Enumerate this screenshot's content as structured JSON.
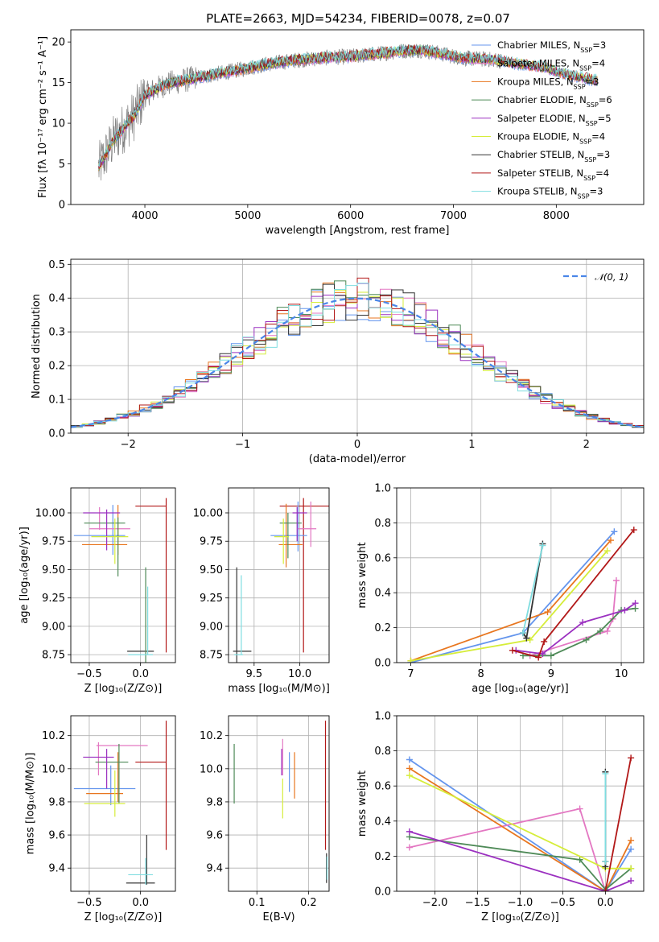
{
  "page_title": "PLATE=2663, MJD=54234, FIBERID=0078, z=0.07",
  "models": [
    {
      "name": "Chabrier MILES",
      "nssp": "3",
      "color": "#6495ed"
    },
    {
      "name": "Salpeter MILES",
      "nssp": "4",
      "color": "#e377c2"
    },
    {
      "name": "Kroupa MILES",
      "nssp": "3",
      "color": "#e8761f"
    },
    {
      "name": "Chabrier ELODIE",
      "nssp": "6",
      "color": "#4e8a57"
    },
    {
      "name": "Salpeter ELODIE",
      "nssp": "5",
      "color": "#9b30c0"
    },
    {
      "name": "Kroupa ELODIE",
      "nssp": "4",
      "color": "#d6ed3a"
    },
    {
      "name": "Chabrier STELIB",
      "nssp": "3",
      "color": "#333333"
    },
    {
      "name": "Salpeter STELIB",
      "nssp": "4",
      "color": "#b21818"
    },
    {
      "name": "Kroupa STELIB",
      "nssp": "3",
      "color": "#7fdde0"
    }
  ],
  "chart_data": [
    {
      "type": "line",
      "id": "spectrum",
      "xlabel": "wavelength [Angstrom, rest frame]",
      "ylabel": "Flux [fλ 10⁻¹⁷ erg cm⁻² s⁻¹ A⁻¹]",
      "xlim": [
        3280,
        8850
      ],
      "ylim": [
        0,
        21.5
      ],
      "xticks": [
        4000,
        5000,
        6000,
        7000,
        8000
      ],
      "yticks": [
        0,
        5,
        10,
        15,
        20
      ],
      "data_color": "#808080",
      "continuum": {
        "x": [
          3550,
          3700,
          3900,
          4000,
          4200,
          4500,
          4800,
          5000,
          5200,
          5500,
          5800,
          6000,
          6300,
          6500,
          6700,
          6900,
          7100,
          7400,
          7700,
          7900,
          8100,
          8400
        ],
        "y": [
          4.5,
          8.0,
          11.0,
          13.5,
          14.8,
          15.6,
          16.3,
          16.8,
          17.3,
          17.8,
          18.1,
          18.2,
          18.6,
          18.9,
          19.0,
          18.5,
          18.0,
          17.8,
          17.2,
          16.8,
          16.0,
          15.2
        ]
      },
      "legend": "right",
      "grid": false
    },
    {
      "type": "histogram",
      "id": "residuals",
      "xlabel": "(data-model)/error",
      "ylabel": "Normed distribution",
      "xlim": [
        -2.5,
        2.5
      ],
      "ylim": [
        0,
        0.515
      ],
      "xticks": [
        -2,
        -1,
        0,
        1,
        2
      ],
      "yticks": [
        0.0,
        0.1,
        0.2,
        0.3,
        0.4,
        0.5
      ],
      "bin_width": 0.1,
      "reference": {
        "label": "𝒩(0, 1)",
        "color": "#4a86e8"
      },
      "legend": "top-right",
      "grid": true
    },
    {
      "type": "scatter",
      "id": "age-vs-Z",
      "xlabel": "Z [log₁₀(Z/Z⊙)]",
      "ylabel": "age  [log₁₀(age/yr)]",
      "xlim": [
        -0.68,
        0.34
      ],
      "ylim": [
        8.68,
        10.22
      ],
      "xticks": [
        -0.5,
        0.0
      ],
      "yticks": [
        8.75,
        9.0,
        9.25,
        9.5,
        9.75,
        10.0
      ],
      "errorbars": [
        {
          "model": 6,
          "x": 0.0,
          "xerr": 0.13,
          "y": 8.78,
          "yerr": 0.0
        },
        {
          "model": 3,
          "x": 0.05,
          "xerr": 0.0,
          "y": 8.9,
          "yerr": 0.62
        },
        {
          "model": 8,
          "x": 0.07,
          "xerr": 0.0,
          "y": 9.05,
          "yerr": 0.3
        },
        {
          "model": 8,
          "x": 0.0,
          "xerr": 0.12,
          "y": 8.75,
          "yerr": 0.0
        },
        {
          "model": 7,
          "x": 0.25,
          "xerr": 0.0,
          "y": 9.45,
          "yerr": 0.68
        },
        {
          "model": 7,
          "x": 0.1,
          "xerr": 0.15,
          "y": 10.06,
          "yerr": 0.0
        },
        {
          "model": 0,
          "x": -0.4,
          "xerr": 0.25,
          "y": 9.8,
          "yerr": 0.0
        },
        {
          "model": 0,
          "x": -0.27,
          "xerr": 0.0,
          "y": 9.85,
          "yerr": 0.22
        },
        {
          "model": 1,
          "x": -0.3,
          "xerr": 0.2,
          "y": 9.86,
          "yerr": 0.0
        },
        {
          "model": 1,
          "x": -0.4,
          "xerr": 0.0,
          "y": 9.95,
          "yerr": 0.1
        },
        {
          "model": 2,
          "x": -0.35,
          "xerr": 0.22,
          "y": 9.72,
          "yerr": 0.0
        },
        {
          "model": 2,
          "x": -0.22,
          "xerr": 0.0,
          "y": 9.85,
          "yerr": 0.22
        },
        {
          "model": 3,
          "x": -0.35,
          "xerr": 0.2,
          "y": 9.91,
          "yerr": 0.0
        },
        {
          "model": 3,
          "x": -0.22,
          "xerr": 0.0,
          "y": 9.7,
          "yerr": 0.26
        },
        {
          "model": 4,
          "x": -0.38,
          "xerr": 0.18,
          "y": 10.0,
          "yerr": 0.0
        },
        {
          "model": 4,
          "x": -0.33,
          "xerr": 0.0,
          "y": 9.85,
          "yerr": 0.18
        },
        {
          "model": 5,
          "x": -0.3,
          "xerr": 0.18,
          "y": 9.79,
          "yerr": 0.0
        },
        {
          "model": 5,
          "x": -0.25,
          "xerr": 0.0,
          "y": 9.75,
          "yerr": 0.2
        }
      ],
      "grid": true
    },
    {
      "type": "scatter",
      "id": "age-vs-mass",
      "xlabel": "mass [log₁₀(M/M⊙)]",
      "ylabel": "",
      "xlim": [
        9.22,
        10.32
      ],
      "ylim": [
        8.68,
        10.22
      ],
      "xticks": [
        9.5,
        10.0
      ],
      "yticks": [
        8.75,
        9.0,
        9.25,
        9.5,
        9.75,
        10.0
      ],
      "errorbars": [
        {
          "model": 6,
          "x": 9.37,
          "xerr": 0.1,
          "y": 8.78,
          "yerr": 0.0
        },
        {
          "model": 6,
          "x": 9.31,
          "xerr": 0.0,
          "y": 9.1,
          "yerr": 0.42
        },
        {
          "model": 8,
          "x": 9.36,
          "xerr": 0.0,
          "y": 9.1,
          "yerr": 0.35
        },
        {
          "model": 8,
          "x": 9.33,
          "xerr": 0.05,
          "y": 8.75,
          "yerr": 0.0
        },
        {
          "model": 7,
          "x": 10.04,
          "xerr": 0.0,
          "y": 9.45,
          "yerr": 0.68
        },
        {
          "model": 7,
          "x": 10.06,
          "xerr": 0.28,
          "y": 10.06,
          "yerr": 0.0
        },
        {
          "model": 0,
          "x": 9.88,
          "xerr": 0.2,
          "y": 9.8,
          "yerr": 0.0
        },
        {
          "model": 0,
          "x": 9.98,
          "xerr": 0.0,
          "y": 9.88,
          "yerr": 0.22
        },
        {
          "model": 1,
          "x": 10.08,
          "xerr": 0.1,
          "y": 9.86,
          "yerr": 0.0
        },
        {
          "model": 1,
          "x": 10.12,
          "xerr": 0.0,
          "y": 9.9,
          "yerr": 0.2
        },
        {
          "model": 2,
          "x": 9.9,
          "xerr": 0.13,
          "y": 9.72,
          "yerr": 0.0
        },
        {
          "model": 2,
          "x": 9.85,
          "xerr": 0.0,
          "y": 9.8,
          "yerr": 0.28
        },
        {
          "model": 3,
          "x": 9.9,
          "xerr": 0.12,
          "y": 9.91,
          "yerr": 0.0
        },
        {
          "model": 3,
          "x": 9.87,
          "xerr": 0.0,
          "y": 9.8,
          "yerr": 0.2
        },
        {
          "model": 4,
          "x": 10.0,
          "xerr": 0.08,
          "y": 10.0,
          "yerr": 0.0
        },
        {
          "model": 4,
          "x": 9.97,
          "xerr": 0.0,
          "y": 9.9,
          "yerr": 0.15
        },
        {
          "model": 5,
          "x": 9.8,
          "xerr": 0.08,
          "y": 9.79,
          "yerr": 0.0
        },
        {
          "model": 5,
          "x": 9.82,
          "xerr": 0.0,
          "y": 9.75,
          "yerr": 0.2
        }
      ],
      "grid": true
    },
    {
      "type": "line",
      "id": "massweight-vs-age",
      "xlabel": "age  [log₁₀(age/yr)]",
      "ylabel": "mass weight",
      "xlim": [
        6.8,
        10.32
      ],
      "ylim": [
        0,
        1.0
      ],
      "xticks": [
        7,
        8,
        9,
        10
      ],
      "yticks": [
        0.0,
        0.2,
        0.4,
        0.6,
        0.8,
        1.0
      ],
      "series": [
        {
          "model": 0,
          "x": [
            7.0,
            8.6,
            9.9
          ],
          "y": [
            0.0,
            0.17,
            0.75
          ]
        },
        {
          "model": 1,
          "x": [
            8.7,
            9.8,
            9.88,
            9.93
          ],
          "y": [
            0.04,
            0.18,
            0.25,
            0.47
          ]
        },
        {
          "model": 2,
          "x": [
            7.0,
            8.95,
            9.85
          ],
          "y": [
            0.01,
            0.29,
            0.7
          ]
        },
        {
          "model": 3,
          "x": [
            8.6,
            9.0,
            9.5,
            9.7,
            10.0,
            10.2
          ],
          "y": [
            0.04,
            0.04,
            0.13,
            0.18,
            0.3,
            0.31
          ]
        },
        {
          "model": 4,
          "x": [
            8.5,
            8.88,
            9.45,
            10.05,
            10.2
          ],
          "y": [
            0.07,
            0.05,
            0.23,
            0.3,
            0.34
          ]
        },
        {
          "model": 5,
          "x": [
            7.0,
            8.7,
            9.8
          ],
          "y": [
            0.01,
            0.13,
            0.64
          ]
        },
        {
          "model": 6,
          "x": [
            8.6,
            8.65,
            8.88
          ],
          "y": [
            0.17,
            0.14,
            0.68
          ]
        },
        {
          "model": 7,
          "x": [
            8.45,
            8.82,
            8.9,
            10.18
          ],
          "y": [
            0.07,
            0.03,
            0.12,
            0.76
          ]
        },
        {
          "model": 8,
          "x": [
            8.6,
            8.88
          ],
          "y": [
            0.17,
            0.67
          ]
        }
      ],
      "grid": true
    },
    {
      "type": "scatter",
      "id": "mass-vs-Z",
      "xlabel": "Z [log₁₀(Z/Z⊙)]",
      "ylabel": "mass [log₁₀(M/M⊙)]",
      "xlim": [
        -0.68,
        0.34
      ],
      "ylim": [
        9.26,
        10.32
      ],
      "xticks": [
        -0.5,
        0.0
      ],
      "yticks": [
        9.4,
        9.6,
        9.8,
        10.0,
        10.2
      ],
      "errorbars": [
        {
          "model": 6,
          "x": 0.0,
          "xerr": 0.14,
          "y": 9.31,
          "yerr": 0.0
        },
        {
          "model": 6,
          "x": 0.06,
          "xerr": 0.0,
          "y": 9.45,
          "yerr": 0.15
        },
        {
          "model": 8,
          "x": 0.0,
          "xerr": 0.12,
          "y": 9.36,
          "yerr": 0.0
        },
        {
          "model": 8,
          "x": 0.05,
          "xerr": 0.0,
          "y": 9.38,
          "yerr": 0.08
        },
        {
          "model": 7,
          "x": 0.25,
          "xerr": 0.0,
          "y": 9.9,
          "yerr": 0.39
        },
        {
          "model": 7,
          "x": 0.1,
          "xerr": 0.15,
          "y": 10.04,
          "yerr": 0.0
        },
        {
          "model": 0,
          "x": -0.35,
          "xerr": 0.3,
          "y": 9.88,
          "yerr": 0.0
        },
        {
          "model": 0,
          "x": -0.29,
          "xerr": 0.0,
          "y": 9.9,
          "yerr": 0.12
        },
        {
          "model": 1,
          "x": -0.18,
          "xerr": 0.25,
          "y": 10.14,
          "yerr": 0.0
        },
        {
          "model": 1,
          "x": -0.41,
          "xerr": 0.0,
          "y": 10.06,
          "yerr": 0.1
        },
        {
          "model": 2,
          "x": -0.35,
          "xerr": 0.18,
          "y": 9.85,
          "yerr": 0.0
        },
        {
          "model": 2,
          "x": -0.22,
          "xerr": 0.0,
          "y": 9.95,
          "yerr": 0.15
        },
        {
          "model": 3,
          "x": -0.28,
          "xerr": 0.16,
          "y": 10.04,
          "yerr": 0.0
        },
        {
          "model": 3,
          "x": -0.21,
          "xerr": 0.0,
          "y": 9.97,
          "yerr": 0.18
        },
        {
          "model": 4,
          "x": -0.41,
          "xerr": 0.15,
          "y": 10.07,
          "yerr": 0.0
        },
        {
          "model": 4,
          "x": -0.33,
          "xerr": 0.0,
          "y": 10.0,
          "yerr": 0.12
        },
        {
          "model": 5,
          "x": -0.35,
          "xerr": 0.2,
          "y": 9.79,
          "yerr": 0.0
        },
        {
          "model": 5,
          "x": -0.25,
          "xerr": 0.0,
          "y": 9.85,
          "yerr": 0.14
        }
      ],
      "grid": true
    },
    {
      "type": "scatter",
      "id": "mass-vs-EBV",
      "xlabel": "E(B-V)",
      "ylabel": "",
      "xlim": [
        0.045,
        0.24
      ],
      "ylim": [
        9.26,
        10.32
      ],
      "xticks": [
        0.1,
        0.2
      ],
      "yticks": [
        9.4,
        9.6,
        9.8,
        10.0,
        10.2
      ],
      "errorbars": [
        {
          "model": 3,
          "x": 0.056,
          "xerr": 0.0,
          "y": 9.97,
          "yerr": 0.18
        },
        {
          "model": 4,
          "x": 0.148,
          "xerr": 0.0,
          "y": 10.04,
          "yerr": 0.08
        },
        {
          "model": 1,
          "x": 0.15,
          "xerr": 0.0,
          "y": 10.07,
          "yerr": 0.11
        },
        {
          "model": 5,
          "x": 0.15,
          "xerr": 0.0,
          "y": 9.82,
          "yerr": 0.12
        },
        {
          "model": 0,
          "x": 0.163,
          "xerr": 0.0,
          "y": 9.98,
          "yerr": 0.12
        },
        {
          "model": 2,
          "x": 0.173,
          "xerr": 0.0,
          "y": 9.96,
          "yerr": 0.14
        },
        {
          "model": 7,
          "x": 0.233,
          "xerr": 0.0,
          "y": 9.9,
          "yerr": 0.39
        },
        {
          "model": 6,
          "x": 0.235,
          "xerr": 0.0,
          "y": 9.4,
          "yerr": 0.09
        },
        {
          "model": 8,
          "x": 0.236,
          "xerr": 0.0,
          "y": 9.4,
          "yerr": 0.07
        }
      ],
      "grid": true
    },
    {
      "type": "line",
      "id": "massweight-vs-Z",
      "xlabel": "Z [log₁₀(Z/Z⊙)]",
      "ylabel": "mass weight",
      "xlim": [
        -2.45,
        0.45
      ],
      "ylim": [
        0,
        1.0
      ],
      "xticks": [
        -2.0,
        -1.5,
        -1.0,
        -0.5,
        0.0
      ],
      "yticks": [
        0.0,
        0.2,
        0.4,
        0.6,
        0.8,
        1.0
      ],
      "series": [
        {
          "model": 0,
          "x": [
            -2.3,
            0.0,
            0.3
          ],
          "y": [
            0.75,
            0.0,
            0.24
          ]
        },
        {
          "model": 1,
          "x": [
            -2.3,
            -0.3,
            0.0
          ],
          "y": [
            0.25,
            0.47,
            0.0
          ]
        },
        {
          "model": 2,
          "x": [
            -2.3,
            0.0,
            0.3
          ],
          "y": [
            0.7,
            0.0,
            0.29
          ]
        },
        {
          "model": 3,
          "x": [
            -2.3,
            -0.3,
            0.0,
            0.3
          ],
          "y": [
            0.31,
            0.18,
            0.01,
            0.13
          ]
        },
        {
          "model": 4,
          "x": [
            -2.3,
            0.0,
            0.3
          ],
          "y": [
            0.34,
            0.0,
            0.06
          ]
        },
        {
          "model": 5,
          "x": [
            -2.3,
            0.0,
            0.3
          ],
          "y": [
            0.66,
            0.13,
            0.13
          ]
        },
        {
          "model": 6,
          "x": [
            0.0,
            0.0,
            0.0
          ],
          "y": [
            0.68,
            0.14,
            0.17
          ]
        },
        {
          "model": 7,
          "x": [
            0.0,
            0.3
          ],
          "y": [
            0.0,
            0.76
          ]
        },
        {
          "model": 8,
          "x": [
            0.0,
            0.0
          ],
          "y": [
            0.67,
            0.17
          ]
        }
      ],
      "grid": true
    }
  ]
}
